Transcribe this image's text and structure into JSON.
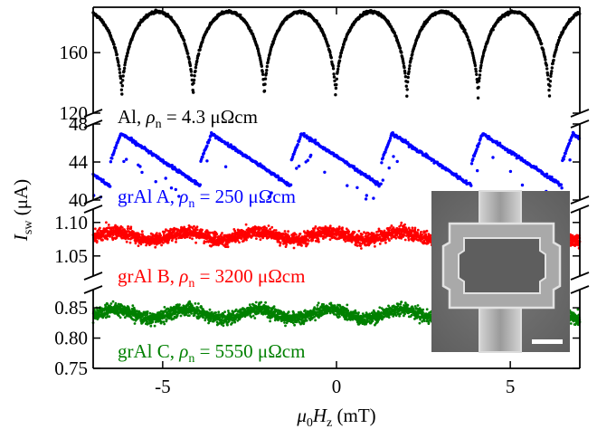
{
  "chart_data": {
    "type": "scatter",
    "xlabel": {
      "sym": "μ",
      "sub1": "0",
      "sym2": "H",
      "sub2": "z",
      "unit": " (mT)"
    },
    "ylabel": {
      "sym": "I",
      "sub": "sw",
      "unit": " (μA)"
    },
    "xlim": [
      -7,
      7
    ],
    "xticks": [
      "-5",
      "0",
      "5"
    ],
    "xtick_values": [
      -5,
      0,
      5
    ],
    "panels": [
      {
        "name": "Al",
        "color": "#000000",
        "ylim": [
          120,
          190
        ],
        "yticks": [
          120,
          160
        ],
        "pattern": "cusps",
        "period_mT": 2.05,
        "phase_mT": -1.05,
        "min": 128,
        "max": 187,
        "label": {
          "material": "Al",
          "rho": "4.3 μΩcm"
        }
      },
      {
        "name": "grAl A",
        "color": "#0000ff",
        "ylim": [
          40,
          48
        ],
        "yticks": [
          40,
          44,
          48
        ],
        "pattern": "sawtooth",
        "period_mT": 2.6,
        "peak_mT": -6.2,
        "min": 41.5,
        "max": 47.0,
        "label": {
          "material": "grAl A",
          "rho": "250 μΩcm"
        }
      },
      {
        "name": "grAl B",
        "color": "#ff0000",
        "ylim": [
          1.02,
          1.12
        ],
        "yticks": [
          1.05,
          1.1
        ],
        "pattern": "noisy-band",
        "center": 1.08,
        "noise": 0.012,
        "modulation": 0.006,
        "label": {
          "material": "grAl B",
          "rho": "3200 μΩcm"
        }
      },
      {
        "name": "grAl C",
        "color": "#008000",
        "ylim": [
          0.75,
          0.88
        ],
        "yticks": [
          0.75,
          0.8,
          0.85
        ],
        "pattern": "noisy-band",
        "center": 0.84,
        "noise": 0.013,
        "modulation": 0.008,
        "label": {
          "material": "grAl C",
          "rho": "5550 μΩcm"
        }
      }
    ]
  },
  "inset": {
    "description_icon": "sem-micrograph-squid-loop",
    "scalebar": true
  }
}
